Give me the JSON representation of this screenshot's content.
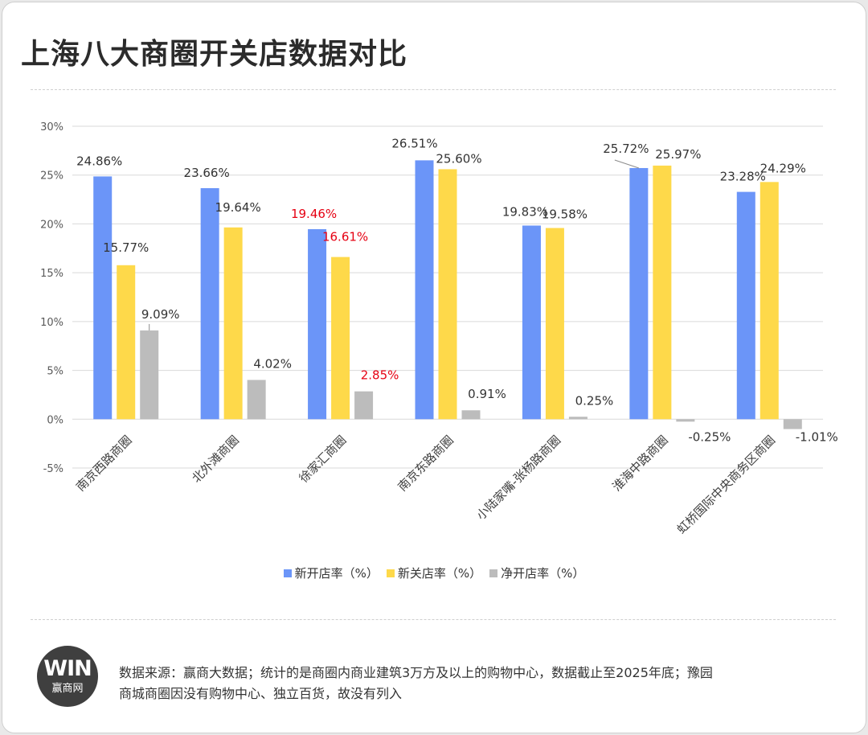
{
  "title": "上海八大商圈开关店数据对比",
  "chart_data": {
    "type": "bar",
    "title": "上海八大商圈开关店数据对比",
    "xlabel": "",
    "ylabel": "",
    "ylim": [
      -5,
      30
    ],
    "yticks": [
      -5,
      0,
      5,
      10,
      15,
      20,
      25,
      30
    ],
    "ytick_labels": [
      "-5%",
      "0%",
      "5%",
      "10%",
      "15%",
      "20%",
      "25%",
      "30%"
    ],
    "grid": true,
    "legend_position": "bottom",
    "categories": [
      "南京西路商圈",
      "北外滩商圈",
      "徐家汇商圈",
      "南京东路商圈",
      "小陆家嘴-张杨路商圈",
      "淮海中路商圈",
      "虹桥国际中央商务区商圈"
    ],
    "series": [
      {
        "name": "新开店率（%）",
        "color": "#6b95f8",
        "values": [
          24.86,
          23.66,
          19.46,
          26.51,
          19.83,
          25.72,
          23.28
        ],
        "labels": [
          "24.86%",
          "23.66%",
          "19.46%",
          "26.51%",
          "19.83%",
          "25.72%",
          "23.28%"
        ]
      },
      {
        "name": "新关店率（%）",
        "color": "#fed94a",
        "values": [
          15.77,
          19.64,
          16.61,
          25.6,
          19.58,
          25.97,
          24.29
        ],
        "labels": [
          "15.77%",
          "19.64%",
          "16.61%",
          "25.60%",
          "19.58%",
          "25.97%",
          "24.29%"
        ]
      },
      {
        "name": "净开店率（%）",
        "color": "#bcbcbc",
        "values": [
          9.09,
          4.02,
          2.85,
          0.91,
          0.25,
          -0.25,
          -1.01
        ],
        "labels": [
          "9.09%",
          "4.02%",
          "2.85%",
          "0.91%",
          "0.25%",
          "-0.25%",
          "-1.01%"
        ]
      }
    ],
    "highlight_category": "徐家汇商圈",
    "highlight_color": "#e60012",
    "label_color": "#333333"
  },
  "footer": {
    "logo_mark": "WIN",
    "logo_text": "赢商网",
    "source_note": "数据来源：赢商大数据；统计的是商圈内商业建筑3万方及以上的购物中心，数据截止至2025年底；豫园商城商圈因没有购物中心、独立百货，故没有列入"
  }
}
